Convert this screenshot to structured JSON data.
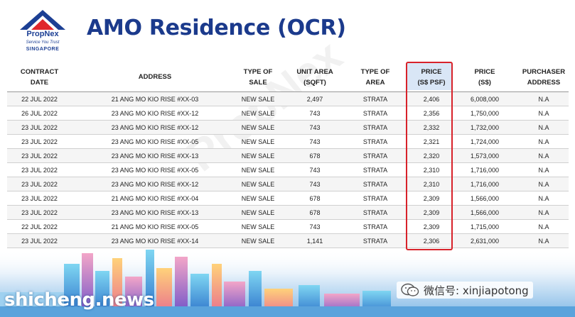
{
  "logo": {
    "name": "PropNex",
    "tagline": "Service You Trust",
    "country": "SINGAPORE"
  },
  "title": "AMO Residence (OCR)",
  "watermark": "PropNex",
  "columns": [
    [
      "CONTRACT",
      "DATE"
    ],
    [
      "ADDRESS"
    ],
    [
      "TYPE OF",
      "SALE"
    ],
    [
      "UNIT AREA",
      "(SQFT)"
    ],
    [
      "TYPE OF",
      "AREA"
    ],
    [
      "PRICE",
      "(S$ PSF)"
    ],
    [
      "PRICE",
      "(S$)"
    ],
    [
      "PURCHASER",
      "ADDRESS"
    ]
  ],
  "rows": [
    [
      "22 JUL 2022",
      "21 ANG MO KIO RISE #XX-03",
      "NEW SALE",
      "2,497",
      "STRATA",
      "2,406",
      "6,008,000",
      "N.A"
    ],
    [
      "26 JUL 2022",
      "23 ANG MO KIO RISE #XX-12",
      "NEW SALE",
      "743",
      "STRATA",
      "2,356",
      "1,750,000",
      "N.A"
    ],
    [
      "23 JUL 2022",
      "23 ANG MO KIO RISE #XX-12",
      "NEW SALE",
      "743",
      "STRATA",
      "2,332",
      "1,732,000",
      "N.A"
    ],
    [
      "23 JUL 2022",
      "23 ANG MO KIO RISE #XX-05",
      "NEW SALE",
      "743",
      "STRATA",
      "2,321",
      "1,724,000",
      "N.A"
    ],
    [
      "23 JUL 2022",
      "23 ANG MO KIO RISE #XX-13",
      "NEW SALE",
      "678",
      "STRATA",
      "2,320",
      "1,573,000",
      "N.A"
    ],
    [
      "23 JUL 2022",
      "23 ANG MO KIO RISE #XX-05",
      "NEW SALE",
      "743",
      "STRATA",
      "2,310",
      "1,716,000",
      "N.A"
    ],
    [
      "23 JUL 2022",
      "23 ANG MO KIO RISE #XX-12",
      "NEW SALE",
      "743",
      "STRATA",
      "2,310",
      "1,716,000",
      "N.A"
    ],
    [
      "23 JUL 2022",
      "21 ANG MO KIO RISE #XX-04",
      "NEW SALE",
      "678",
      "STRATA",
      "2,309",
      "1,566,000",
      "N.A"
    ],
    [
      "23 JUL 2022",
      "23 ANG MO KIO RISE #XX-13",
      "NEW SALE",
      "678",
      "STRATA",
      "2,309",
      "1,566,000",
      "N.A"
    ],
    [
      "22 JUL 2022",
      "21 ANG MO KIO RISE #XX-05",
      "NEW SALE",
      "743",
      "STRATA",
      "2,309",
      "1,715,000",
      "N.A"
    ],
    [
      "23 JUL 2022",
      "23 ANG MO KIO RISE #XX-14",
      "NEW SALE",
      "1,141",
      "STRATA",
      "2,306",
      "2,631,000",
      "N.A"
    ]
  ],
  "highlight_color": "#d8222a",
  "wechat_label": "微信号: xinjiapotong",
  "site_watermark": "shicheng.news"
}
